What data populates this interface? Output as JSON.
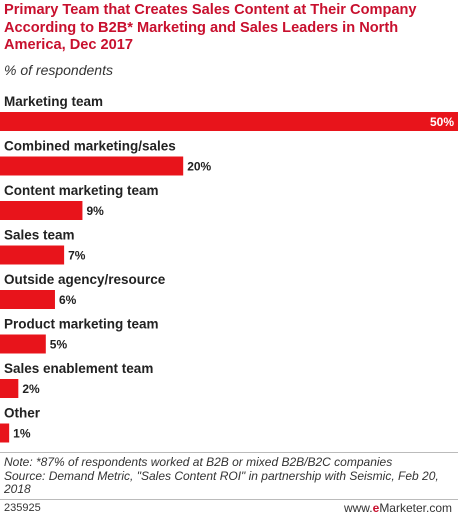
{
  "header": {
    "title": "Primary Team that Creates Sales Content at Their Company According to B2B* Marketing and Sales Leaders in North America, Dec 2017",
    "subtitle": "% of respondents"
  },
  "chart_data": {
    "type": "bar",
    "orientation": "horizontal",
    "categories": [
      "Marketing team",
      "Combined marketing/sales",
      "Content marketing team",
      "Sales team",
      "Outside agency/resource",
      "Product marketing team",
      "Sales enablement team",
      "Other"
    ],
    "values": [
      50,
      20,
      9,
      7,
      6,
      5,
      2,
      1
    ],
    "value_labels": [
      "50%",
      "20%",
      "9%",
      "7%",
      "6%",
      "5%",
      "2%",
      "1%"
    ],
    "xlim": [
      0,
      50
    ],
    "grid": false,
    "bar_color": "#e8141b"
  },
  "footer": {
    "note": "Note: *87% of respondents worked at B2B or mixed B2B/B2C companies",
    "source": "Source: Demand Metric, \"Sales Content ROI\" in partnership with Seismic, Feb 20, 2018",
    "id": "235925",
    "brand_prefix": "www.",
    "brand_e": "e",
    "brand_rest": "Marketer.com"
  },
  "colors": {
    "title": "#c8102e",
    "bar": "#e8141b",
    "rule": "#bbbbbb"
  }
}
